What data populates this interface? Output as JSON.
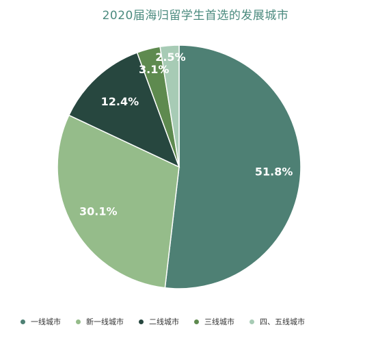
{
  "chart_data": {
    "type": "pie",
    "title": "2020届海归留学生首选的发展城市",
    "categories": [
      "一线城市",
      "新一线城市",
      "二线城市",
      "三线城市",
      "四、五线城市"
    ],
    "values": [
      51.8,
      30.1,
      12.4,
      3.1,
      2.5
    ],
    "value_labels": [
      "51.8%",
      "30.1%",
      "12.4%",
      "3.1%",
      "2.5%"
    ],
    "colors": [
      "#4e8074",
      "#95bc8a",
      "#27473f",
      "#5e8a4f",
      "#a7cbb5"
    ],
    "start_angle": "12 o'clock",
    "direction": "clockwise",
    "legend_position": "bottom-left"
  }
}
